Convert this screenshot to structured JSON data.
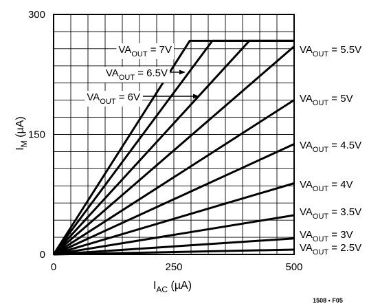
{
  "chart_data": {
    "type": "line",
    "xlabel_main": "I",
    "xlabel_sub": "AC",
    "xlabel_unit": " (µA)",
    "ylabel_main": "I",
    "ylabel_sub": "M",
    "ylabel_unit": " (µA)",
    "xlim": [
      0,
      500
    ],
    "ylim": [
      0,
      300
    ],
    "x_ticks": [
      0,
      250,
      500
    ],
    "y_ticks": [
      0,
      150,
      300
    ],
    "x_tick_labels": [
      "0",
      "250",
      "500"
    ],
    "y_tick_labels": [
      "0",
      "150",
      "300"
    ],
    "grid": true,
    "saturation_level": 267,
    "figure_code": "1508 • F05",
    "series": [
      {
        "name": "VA OUT = 2.5V",
        "label_prefix": "VA",
        "label_sub": "OUT",
        "label_value": " = 2.5V",
        "x": [
          0,
          500
        ],
        "y": [
          0,
          6
        ]
      },
      {
        "name": "VA OUT = 3V",
        "label_prefix": "VA",
        "label_sub": "OUT",
        "label_value": " = 3V",
        "x": [
          0,
          500
        ],
        "y": [
          0,
          20
        ]
      },
      {
        "name": "VA OUT = 3.5V",
        "label_prefix": "VA",
        "label_sub": "OUT",
        "label_value": " = 3.5V",
        "x": [
          0,
          500
        ],
        "y": [
          0,
          49
        ]
      },
      {
        "name": "VA OUT = 4V",
        "label_prefix": "VA",
        "label_sub": "OUT",
        "label_value": " = 4V",
        "x": [
          0,
          500
        ],
        "y": [
          0,
          89
        ]
      },
      {
        "name": "VA OUT = 4.5V",
        "label_prefix": "VA",
        "label_sub": "OUT",
        "label_value": " = 4.5V",
        "x": [
          0,
          500
        ],
        "y": [
          0,
          138
        ]
      },
      {
        "name": "VA OUT = 5V",
        "label_prefix": "VA",
        "label_sub": "OUT",
        "label_value": " = 5V",
        "x": [
          0,
          500
        ],
        "y": [
          0,
          193
        ]
      },
      {
        "name": "VA OUT = 5.5V",
        "label_prefix": "VA",
        "label_sub": "OUT",
        "label_value": " = 5.5V",
        "x": [
          0,
          500
        ],
        "y": [
          0,
          260
        ]
      },
      {
        "name": "VA OUT = 6V",
        "label_prefix": "VA",
        "label_sub": "OUT",
        "label_value": " = 6V",
        "x": [
          0,
          407,
          500
        ],
        "y": [
          0,
          267,
          267
        ]
      },
      {
        "name": "VA OUT = 6.5V",
        "label_prefix": "VA",
        "label_sub": "OUT",
        "label_value": " = 6.5V",
        "x": [
          0,
          330,
          500
        ],
        "y": [
          0,
          267,
          267
        ]
      },
      {
        "name": "VA OUT = 7V",
        "label_prefix": "VA",
        "label_sub": "OUT",
        "label_value": " = 7V",
        "x": [
          0,
          283,
          500
        ],
        "y": [
          0,
          267,
          267
        ]
      }
    ]
  }
}
